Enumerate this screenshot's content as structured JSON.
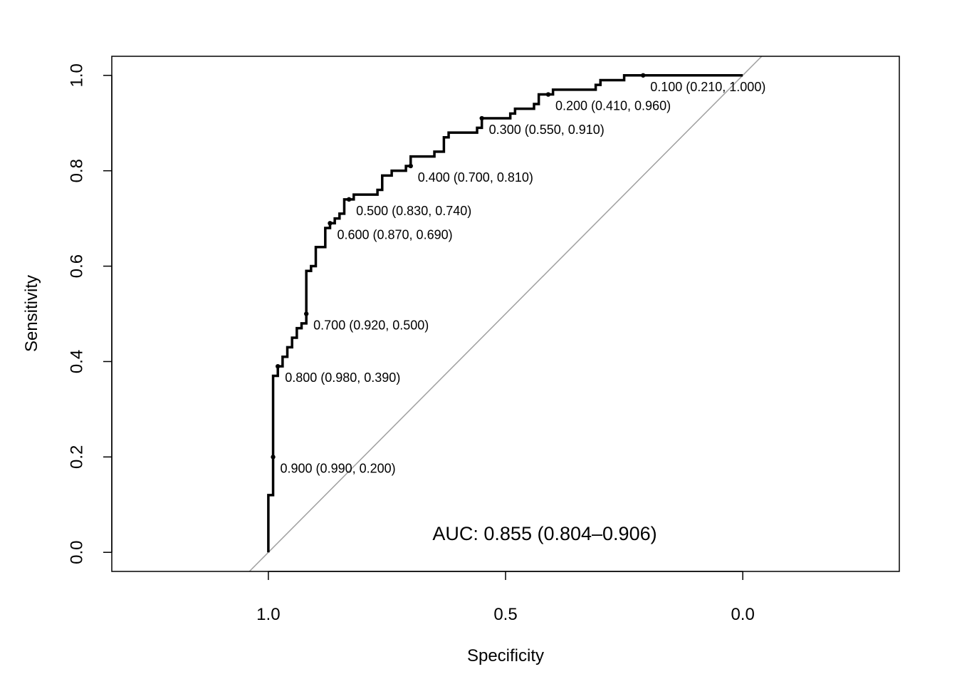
{
  "chart_data": {
    "type": "line",
    "xlabel": "Specificity",
    "ylabel": "Sensitivity",
    "xlim": [
      1.33,
      -0.33
    ],
    "ylim": [
      -0.04,
      1.04
    ],
    "x_reversed": true,
    "grid": false,
    "x_ticks": [
      {
        "value": 1.0,
        "label": "1.0"
      },
      {
        "value": 0.5,
        "label": "0.5"
      },
      {
        "value": 0.0,
        "label": "0.0"
      }
    ],
    "y_ticks": [
      {
        "value": 0.0,
        "label": "0.0"
      },
      {
        "value": 0.2,
        "label": "0.2"
      },
      {
        "value": 0.4,
        "label": "0.4"
      },
      {
        "value": 0.6,
        "label": "0.6"
      },
      {
        "value": 0.8,
        "label": "0.8"
      },
      {
        "value": 1.0,
        "label": "1.0"
      }
    ],
    "reference_line": {
      "from": [
        1,
        0
      ],
      "to": [
        0,
        1
      ],
      "color": "#a0a0a0"
    },
    "roc_curve": {
      "color": "#000000",
      "points": [
        [
          1.0,
          0.0
        ],
        [
          1.0,
          0.12
        ],
        [
          0.99,
          0.12
        ],
        [
          0.99,
          0.37
        ],
        [
          0.98,
          0.37
        ],
        [
          0.98,
          0.39
        ],
        [
          0.97,
          0.39
        ],
        [
          0.97,
          0.41
        ],
        [
          0.96,
          0.41
        ],
        [
          0.96,
          0.43
        ],
        [
          0.95,
          0.43
        ],
        [
          0.95,
          0.45
        ],
        [
          0.94,
          0.45
        ],
        [
          0.94,
          0.47
        ],
        [
          0.93,
          0.47
        ],
        [
          0.93,
          0.48
        ],
        [
          0.92,
          0.48
        ],
        [
          0.92,
          0.59
        ],
        [
          0.91,
          0.59
        ],
        [
          0.91,
          0.6
        ],
        [
          0.9,
          0.6
        ],
        [
          0.9,
          0.64
        ],
        [
          0.88,
          0.64
        ],
        [
          0.88,
          0.68
        ],
        [
          0.87,
          0.68
        ],
        [
          0.87,
          0.69
        ],
        [
          0.86,
          0.69
        ],
        [
          0.86,
          0.7
        ],
        [
          0.85,
          0.7
        ],
        [
          0.85,
          0.71
        ],
        [
          0.84,
          0.71
        ],
        [
          0.84,
          0.74
        ],
        [
          0.82,
          0.74
        ],
        [
          0.82,
          0.75
        ],
        [
          0.77,
          0.75
        ],
        [
          0.77,
          0.76
        ],
        [
          0.76,
          0.76
        ],
        [
          0.76,
          0.79
        ],
        [
          0.74,
          0.79
        ],
        [
          0.74,
          0.8
        ],
        [
          0.71,
          0.8
        ],
        [
          0.71,
          0.81
        ],
        [
          0.7,
          0.81
        ],
        [
          0.7,
          0.83
        ],
        [
          0.65,
          0.83
        ],
        [
          0.65,
          0.84
        ],
        [
          0.63,
          0.84
        ],
        [
          0.63,
          0.87
        ],
        [
          0.62,
          0.87
        ],
        [
          0.62,
          0.88
        ],
        [
          0.56,
          0.88
        ],
        [
          0.56,
          0.89
        ],
        [
          0.55,
          0.89
        ],
        [
          0.55,
          0.91
        ],
        [
          0.49,
          0.91
        ],
        [
          0.49,
          0.92
        ],
        [
          0.48,
          0.92
        ],
        [
          0.48,
          0.93
        ],
        [
          0.44,
          0.93
        ],
        [
          0.44,
          0.94
        ],
        [
          0.43,
          0.94
        ],
        [
          0.43,
          0.96
        ],
        [
          0.4,
          0.96
        ],
        [
          0.4,
          0.97
        ],
        [
          0.31,
          0.97
        ],
        [
          0.31,
          0.98
        ],
        [
          0.3,
          0.98
        ],
        [
          0.3,
          0.99
        ],
        [
          0.25,
          0.99
        ],
        [
          0.25,
          1.0
        ],
        [
          0.0,
          1.0
        ]
      ]
    },
    "threshold_points": [
      {
        "threshold": "0.100",
        "specificity": 0.21,
        "sensitivity": 1.0,
        "label": "0.100 (0.210, 1.000)"
      },
      {
        "threshold": "0.200",
        "specificity": 0.41,
        "sensitivity": 0.96,
        "label": "0.200 (0.410, 0.960)"
      },
      {
        "threshold": "0.300",
        "specificity": 0.55,
        "sensitivity": 0.91,
        "label": "0.300 (0.550, 0.910)"
      },
      {
        "threshold": "0.400",
        "specificity": 0.7,
        "sensitivity": 0.81,
        "label": "0.400 (0.700, 0.810)"
      },
      {
        "threshold": "0.500",
        "specificity": 0.83,
        "sensitivity": 0.74,
        "label": "0.500 (0.830, 0.740)"
      },
      {
        "threshold": "0.600",
        "specificity": 0.87,
        "sensitivity": 0.69,
        "label": "0.600 (0.870, 0.690)"
      },
      {
        "threshold": "0.700",
        "specificity": 0.92,
        "sensitivity": 0.5,
        "label": "0.700 (0.920, 0.500)"
      },
      {
        "threshold": "0.800",
        "specificity": 0.98,
        "sensitivity": 0.39,
        "label": "0.800 (0.980, 0.390)"
      },
      {
        "threshold": "0.900",
        "specificity": 0.99,
        "sensitivity": 0.2,
        "label": "0.900 (0.990, 0.200)"
      }
    ],
    "auc_text": "AUC: 0.855 (0.804–0.906)",
    "auc_position": {
      "specificity": 0.5,
      "sensitivity": 0.03
    }
  }
}
